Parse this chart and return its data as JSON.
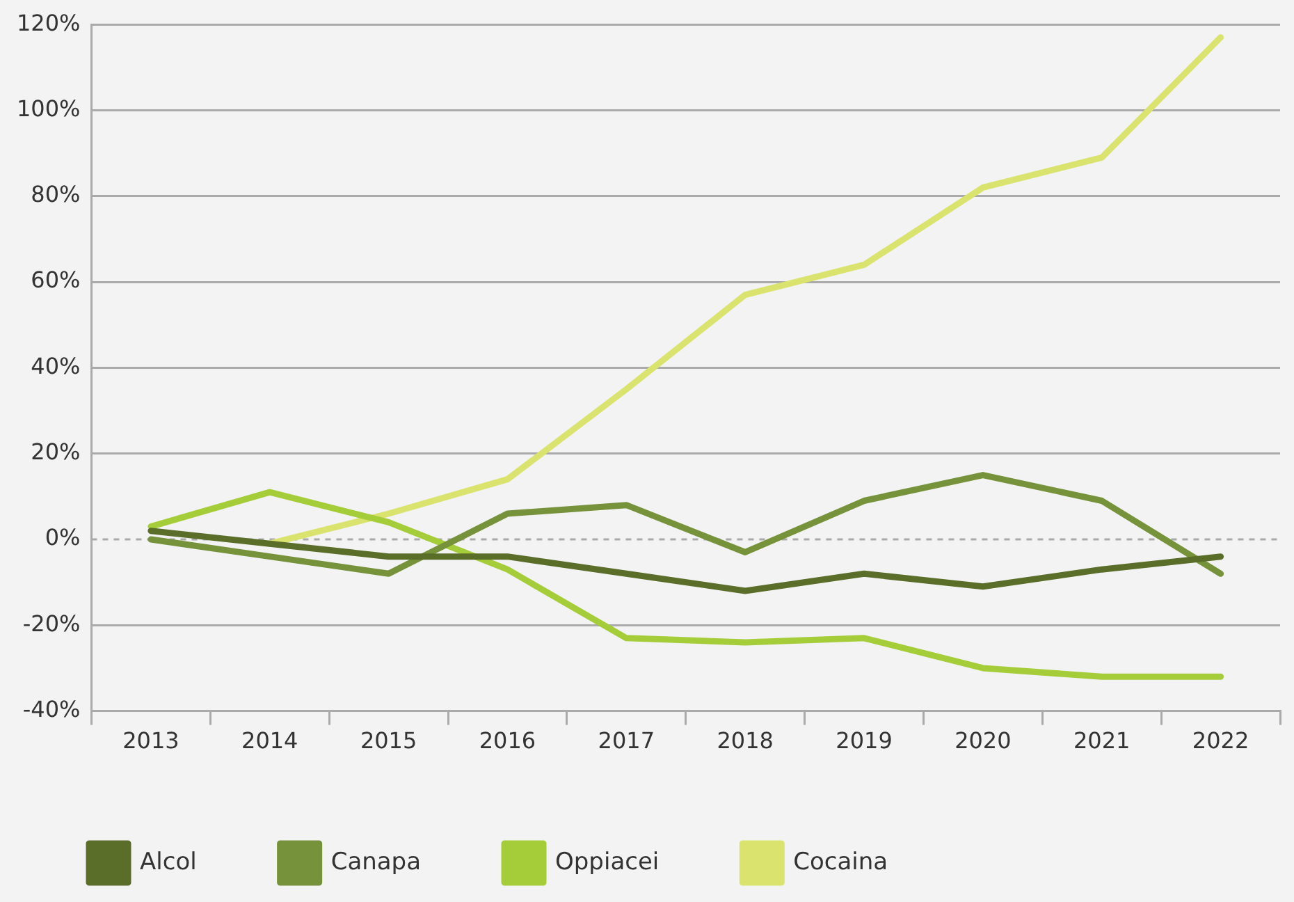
{
  "chart_data": {
    "type": "line",
    "categories": [
      "2013",
      "2014",
      "2015",
      "2016",
      "2017",
      "2018",
      "2019",
      "2020",
      "2021",
      "2022"
    ],
    "series": [
      {
        "name": "Alcol",
        "color": "#5a6e2a",
        "values": [
          2,
          -1,
          -4,
          -4,
          -8,
          -12,
          -8,
          -11,
          -7,
          -4
        ]
      },
      {
        "name": "Canapa",
        "color": "#76923a",
        "values": [
          0,
          -4,
          -8,
          6,
          8,
          -3,
          9,
          15,
          9,
          -8
        ]
      },
      {
        "name": "Oppiacei",
        "color": "#a5cd3a",
        "values": [
          3,
          11,
          4,
          -7,
          -23,
          -24,
          -23,
          -30,
          -32,
          -32
        ]
      },
      {
        "name": "Cocaina",
        "color": "#d9e36e",
        "values": [
          null,
          -1,
          6,
          14,
          35,
          57,
          64,
          82,
          89,
          117
        ]
      }
    ],
    "ylim": [
      -40,
      120
    ],
    "yticks": [
      {
        "value": -40,
        "label": "-40%"
      },
      {
        "value": -20,
        "label": "-20%"
      },
      {
        "value": 0,
        "label": "0%"
      },
      {
        "value": 20,
        "label": "20%"
      },
      {
        "value": 40,
        "label": "40%"
      },
      {
        "value": 60,
        "label": "60%"
      },
      {
        "value": 80,
        "label": "80%"
      },
      {
        "value": 100,
        "label": "100%"
      },
      {
        "value": 120,
        "label": "120%"
      }
    ],
    "ref_lines": [
      {
        "axis": "y",
        "value": 0,
        "color": "#aaaaaa",
        "line_style": "dashed"
      }
    ],
    "grid": "y",
    "legend": "bottom",
    "marker": "none",
    "line_style": "solid"
  }
}
